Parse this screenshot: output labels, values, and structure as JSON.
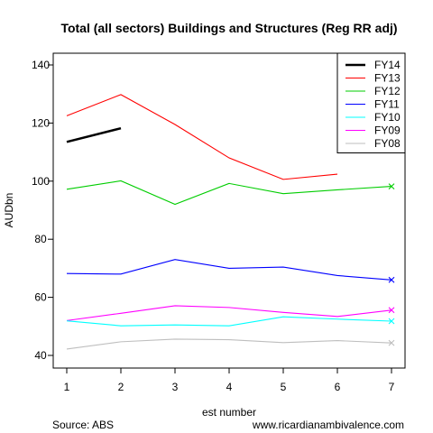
{
  "chart_data": {
    "type": "line",
    "title": "Total (all sectors) Buildings and Structures (Reg RR adj)",
    "xlabel": "est number",
    "ylabel": "AUDbn",
    "x": [
      1,
      2,
      3,
      4,
      5,
      6,
      7
    ],
    "xlim": [
      1,
      7
    ],
    "ylim": [
      40,
      140
    ],
    "yticks": [
      40,
      60,
      80,
      100,
      120,
      140
    ],
    "legend_position": "top-right",
    "grid": false,
    "series": [
      {
        "name": "FY14",
        "color": "#000000",
        "values": [
          113.5,
          118.2,
          null,
          null,
          null,
          null,
          null
        ],
        "final_marker": false
      },
      {
        "name": "FY13",
        "color": "#ff0000",
        "values": [
          122.5,
          129.8,
          119.5,
          108.0,
          100.6,
          102.4,
          null
        ],
        "final_marker": false
      },
      {
        "name": "FY12",
        "color": "#00cd00",
        "values": [
          97.2,
          100.1,
          92.0,
          99.2,
          95.7,
          97.0,
          98.2
        ],
        "final_marker": true
      },
      {
        "name": "FY11",
        "color": "#0000ff",
        "values": [
          68.2,
          68.0,
          73.0,
          70.0,
          70.4,
          67.5,
          66.0
        ],
        "final_marker": true
      },
      {
        "name": "FY10",
        "color": "#00ffff",
        "values": [
          51.9,
          50.2,
          50.5,
          50.2,
          53.3,
          52.5,
          51.8
        ],
        "final_marker": true
      },
      {
        "name": "FY09",
        "color": "#ff00ff",
        "values": [
          52.0,
          54.5,
          57.1,
          56.5,
          54.8,
          53.4,
          55.6
        ],
        "final_marker": true
      },
      {
        "name": "FY08",
        "color": "#bebebe",
        "values": [
          42.2,
          44.7,
          45.6,
          45.4,
          44.4,
          45.1,
          44.3
        ],
        "final_marker": true
      }
    ]
  },
  "footer": {
    "source": "Source: ABS",
    "site": "www.ricardianambivalence.com"
  }
}
